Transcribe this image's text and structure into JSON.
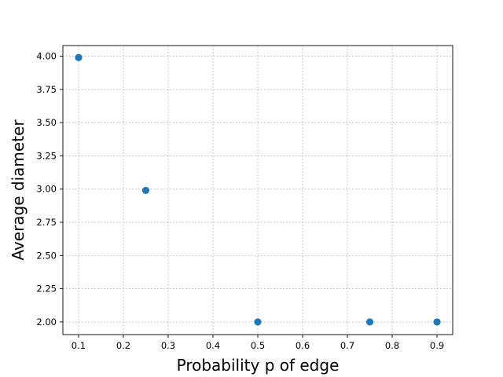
{
  "chart_data": {
    "type": "scatter",
    "xlabel": "Probability p of edge",
    "ylabel": "Average diameter",
    "xlim": [
      0.065,
      0.935
    ],
    "ylim": [
      1.905,
      4.08
    ],
    "xticks": [
      "0.1",
      "0.2",
      "0.3",
      "0.4",
      "0.5",
      "0.6",
      "0.7",
      "0.8",
      "0.9"
    ],
    "yticks": [
      "2.00",
      "2.25",
      "2.50",
      "2.75",
      "3.00",
      "3.25",
      "3.50",
      "3.75",
      "4.00"
    ],
    "grid": true,
    "point_color": "#1f77b4",
    "points": [
      {
        "x": 0.1,
        "y": 3.99
      },
      {
        "x": 0.25,
        "y": 2.99
      },
      {
        "x": 0.5,
        "y": 2.0
      },
      {
        "x": 0.75,
        "y": 2.0
      },
      {
        "x": 0.9,
        "y": 2.0
      }
    ]
  }
}
